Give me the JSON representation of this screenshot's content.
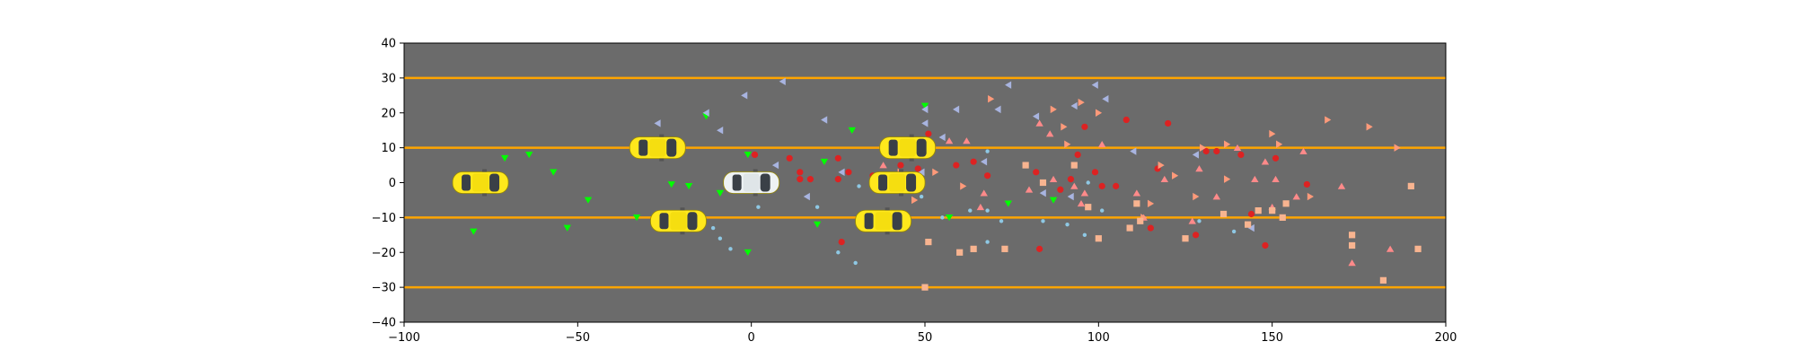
{
  "chart_data": {
    "type": "scatter",
    "title": "",
    "xlabel": "",
    "ylabel": "",
    "xlim": [
      -100,
      200
    ],
    "ylim": [
      -40,
      40
    ],
    "xticks": [
      -100,
      -50,
      0,
      50,
      100,
      150,
      200
    ],
    "yticks": [
      -40,
      -30,
      -20,
      -10,
      0,
      10,
      20,
      30,
      40
    ],
    "background_color": "#6b6b6b",
    "lane_color": "#ffa500",
    "lane_lines": [
      30,
      10,
      -10,
      -30
    ],
    "ego_vehicle": {
      "x": 0,
      "y": 0,
      "color": "#eef2f4"
    },
    "vehicles": [
      {
        "x": -78,
        "y": 0,
        "color": "#ffe81c"
      },
      {
        "x": -27,
        "y": 10,
        "color": "#ffe81c"
      },
      {
        "x": -21,
        "y": -11,
        "color": "#ffe81c"
      },
      {
        "x": 45,
        "y": 10,
        "color": "#ffe81c"
      },
      {
        "x": 42,
        "y": 0,
        "color": "#ffe81c"
      },
      {
        "x": 38,
        "y": -11,
        "color": "#ffe81c"
      }
    ],
    "series": [
      {
        "marker": "triangle-down",
        "color": "#00ff00",
        "points": [
          [
            -71,
            7
          ],
          [
            -64,
            8
          ],
          [
            -57,
            3
          ],
          [
            -47,
            -5
          ],
          [
            -80,
            -14
          ],
          [
            -53,
            -13
          ],
          [
            -33,
            -10
          ],
          [
            -23,
            -0.5
          ],
          [
            -18,
            -1
          ],
          [
            -13,
            19
          ],
          [
            -9,
            -3
          ],
          [
            -1,
            8
          ],
          [
            -1,
            -20
          ],
          [
            19,
            -12
          ],
          [
            21,
            6
          ],
          [
            29,
            15
          ],
          [
            43,
            -1
          ],
          [
            50,
            22
          ],
          [
            57,
            -10
          ],
          [
            74,
            -6
          ],
          [
            87,
            -5
          ]
        ]
      },
      {
        "marker": "triangle-left",
        "color": "#a8b4e0",
        "points": [
          [
            -27,
            17
          ],
          [
            -13,
            20
          ],
          [
            -9,
            15
          ],
          [
            -2,
            25
          ],
          [
            9,
            29
          ],
          [
            7,
            5
          ],
          [
            16,
            -4
          ],
          [
            21,
            18
          ],
          [
            26,
            3
          ],
          [
            43,
            -1
          ],
          [
            49,
            3
          ],
          [
            50,
            17
          ],
          [
            50,
            21
          ],
          [
            55,
            13
          ],
          [
            59,
            21
          ],
          [
            67,
            6
          ],
          [
            71,
            21
          ],
          [
            74,
            28
          ],
          [
            82,
            19
          ],
          [
            84,
            -3
          ],
          [
            92,
            -4
          ],
          [
            93,
            22
          ],
          [
            99,
            28
          ],
          [
            102,
            24
          ],
          [
            110,
            9
          ],
          [
            128,
            8
          ],
          [
            144,
            -13
          ]
        ]
      },
      {
        "marker": "dot",
        "color": "#8ec8e4",
        "points": [
          [
            -11,
            -13
          ],
          [
            -9,
            -16
          ],
          [
            -6,
            -19
          ],
          [
            2,
            -7
          ],
          [
            19,
            -7
          ],
          [
            25,
            -20
          ],
          [
            30,
            -23
          ],
          [
            31,
            -1
          ],
          [
            45,
            0
          ],
          [
            49,
            -4
          ],
          [
            55,
            -10
          ],
          [
            63,
            -8
          ],
          [
            68,
            -8
          ],
          [
            68,
            9
          ],
          [
            68,
            -17
          ],
          [
            72,
            -11
          ],
          [
            84,
            -11
          ],
          [
            91,
            -12
          ],
          [
            96,
            -15
          ],
          [
            97,
            0
          ],
          [
            101,
            -8
          ],
          [
            129,
            -11
          ],
          [
            139,
            -14
          ]
        ]
      },
      {
        "marker": "circle",
        "color": "#dd2222",
        "points": [
          [
            1,
            8
          ],
          [
            11,
            7
          ],
          [
            14,
            1
          ],
          [
            14,
            3
          ],
          [
            17,
            1
          ],
          [
            25,
            7
          ],
          [
            26,
            -17
          ],
          [
            25,
            1
          ],
          [
            28,
            3
          ],
          [
            35,
            2
          ],
          [
            43,
            5
          ],
          [
            48,
            4
          ],
          [
            51,
            14
          ],
          [
            59,
            5
          ],
          [
            64,
            6
          ],
          [
            68,
            2
          ],
          [
            82,
            3
          ],
          [
            83,
            -19
          ],
          [
            89,
            -2
          ],
          [
            92,
            1
          ],
          [
            94,
            8
          ],
          [
            96,
            16
          ],
          [
            99,
            3
          ],
          [
            101,
            -1
          ],
          [
            105,
            -1
          ],
          [
            108,
            18
          ],
          [
            117,
            4
          ],
          [
            120,
            17
          ],
          [
            115,
            -13
          ],
          [
            128,
            -15
          ],
          [
            131,
            9
          ],
          [
            134,
            9
          ],
          [
            141,
            8
          ],
          [
            144,
            -9
          ],
          [
            148,
            -18
          ],
          [
            151,
            7
          ],
          [
            160,
            -0.5
          ]
        ]
      },
      {
        "marker": "triangle-up",
        "color": "#ff8a8a",
        "points": [
          [
            38,
            5
          ],
          [
            49,
            10
          ],
          [
            57,
            12
          ],
          [
            62,
            12
          ],
          [
            66,
            -7
          ],
          [
            67,
            -3
          ],
          [
            80,
            -2
          ],
          [
            83,
            17
          ],
          [
            86,
            14
          ],
          [
            87,
            1
          ],
          [
            93,
            -1
          ],
          [
            95,
            -6
          ],
          [
            96,
            -3
          ],
          [
            101,
            11
          ],
          [
            111,
            -3
          ],
          [
            113,
            -10
          ],
          [
            119,
            1
          ],
          [
            127,
            -11
          ],
          [
            129,
            4
          ],
          [
            134,
            -4
          ],
          [
            140,
            10
          ],
          [
            145,
            1
          ],
          [
            148,
            6
          ],
          [
            150,
            -7
          ],
          [
            151,
            1
          ],
          [
            157,
            -4
          ],
          [
            159,
            9
          ],
          [
            170,
            -1
          ],
          [
            173,
            -23
          ],
          [
            184,
            -19
          ]
        ]
      },
      {
        "marker": "triangle-right",
        "color": "#ff9a7a",
        "points": [
          [
            43,
            3
          ],
          [
            47,
            -5
          ],
          [
            53,
            3
          ],
          [
            61,
            -1
          ],
          [
            69,
            24
          ],
          [
            87,
            21
          ],
          [
            90,
            16
          ],
          [
            91,
            11
          ],
          [
            95,
            23
          ],
          [
            100,
            20
          ],
          [
            113,
            -10
          ],
          [
            115,
            -6
          ],
          [
            118,
            5
          ],
          [
            122,
            2
          ],
          [
            128,
            -4
          ],
          [
            130,
            10
          ],
          [
            137,
            11
          ],
          [
            137,
            1
          ],
          [
            150,
            14
          ],
          [
            152,
            11
          ],
          [
            161,
            -4
          ],
          [
            166,
            18
          ],
          [
            178,
            16
          ],
          [
            186,
            10
          ]
        ]
      },
      {
        "marker": "square",
        "color": "#f8b490",
        "points": [
          [
            50,
            -30
          ],
          [
            51,
            -17
          ],
          [
            60,
            -20
          ],
          [
            64,
            -19
          ],
          [
            73,
            -19
          ],
          [
            79,
            5
          ],
          [
            84,
            0
          ],
          [
            93,
            5
          ],
          [
            97,
            -7
          ],
          [
            100,
            -16
          ],
          [
            109,
            -13
          ],
          [
            111,
            -6
          ],
          [
            112,
            -11
          ],
          [
            125,
            -16
          ],
          [
            136,
            -9
          ],
          [
            143,
            -12
          ],
          [
            146,
            -8
          ],
          [
            150,
            -8
          ],
          [
            153,
            -10
          ],
          [
            154,
            -6
          ],
          [
            173,
            -15
          ],
          [
            173,
            -18
          ],
          [
            182,
            -28
          ],
          [
            190,
            -1
          ],
          [
            192,
            -19
          ]
        ]
      }
    ]
  }
}
